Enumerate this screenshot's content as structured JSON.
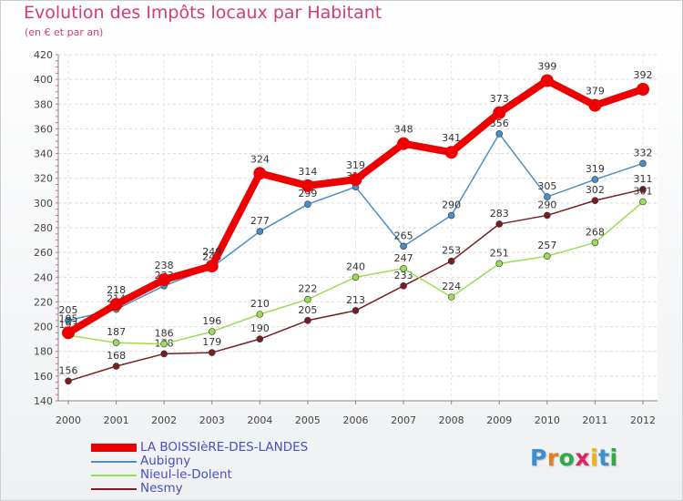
{
  "chart_data": {
    "type": "line",
    "title": "Evolution des Impôts locaux par Habitant",
    "subtitle": "(en € et par an)",
    "xlabel": "",
    "ylabel": "",
    "ylim": [
      140,
      420
    ],
    "y_ticks": [
      "140",
      "160",
      "180",
      "200",
      "220",
      "240",
      "260",
      "280",
      "300",
      "320",
      "340",
      "360",
      "380",
      "400",
      "420"
    ],
    "categories": [
      "2000",
      "2001",
      "2002",
      "2003",
      "2004",
      "2005",
      "2006",
      "2007",
      "2008",
      "2009",
      "2010",
      "2011",
      "2012"
    ],
    "series": [
      {
        "name": "Nesmy",
        "color": "#7a1e22",
        "values": [
          156,
          168,
          178,
          179,
          190,
          205,
          213,
          233,
          253,
          283,
          290,
          302,
          311
        ]
      },
      {
        "name": "Nieul-le-Dolent",
        "color": "#99dd55",
        "values": [
          193,
          187,
          186,
          196,
          210,
          222,
          240,
          247,
          224,
          251,
          257,
          268,
          301
        ]
      },
      {
        "name": "Aubigny",
        "color": "#4a8ec8",
        "values": [
          205,
          214,
          233,
          248,
          277,
          299,
          313,
          265,
          290,
          356,
          305,
          319,
          332
        ]
      },
      {
        "name": "LA BOISSIèRE-DES-LANDES",
        "color": "#ee0000",
        "values": [
          195,
          218,
          238,
          249,
          324,
          314,
          319,
          348,
          341,
          373,
          399,
          379,
          392
        ]
      }
    ],
    "legend_order": [
      "LA BOISSIèRE-DES-LANDES",
      "Aubigny",
      "Nieul-le-Dolent",
      "Nesmy"
    ],
    "grid": true,
    "legend_position": "bottom-left"
  },
  "brand": {
    "letters": [
      "P",
      "r",
      "o",
      "x",
      "i",
      "t",
      "i"
    ],
    "colors": [
      "#3a8fd8",
      "#f07a1a",
      "#2fa84a",
      "#e0245e",
      "#f2b20f",
      "#3a8fd8",
      "#2fa84a"
    ]
  }
}
